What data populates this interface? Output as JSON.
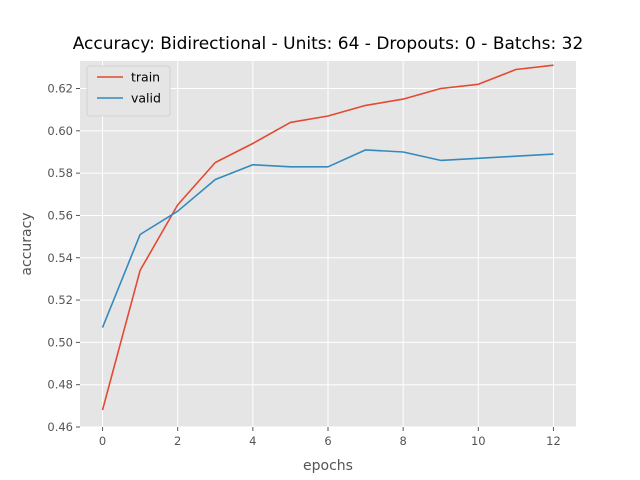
{
  "chart_data": {
    "type": "line",
    "title": "Accuracy: Bidirectional - Units: 64 - Dropouts: 0 - Batchs: 32",
    "xlabel": "epochs",
    "ylabel": "accuracy",
    "xlim": [
      -0.6,
      12.6
    ],
    "ylim": [
      0.46,
      0.633
    ],
    "x_ticks": [
      0,
      2,
      4,
      6,
      8,
      10,
      12
    ],
    "y_ticks": [
      0.46,
      0.48,
      0.5,
      0.52,
      0.54,
      0.56,
      0.58,
      0.6,
      0.62
    ],
    "y_tick_labels": [
      "0.46",
      "0.48",
      "0.50",
      "0.52",
      "0.54",
      "0.56",
      "0.58",
      "0.60",
      "0.62"
    ],
    "grid": true,
    "legend": "top-left",
    "x": [
      0,
      1,
      2,
      3,
      4,
      5,
      6,
      7,
      8,
      9,
      10,
      11,
      12
    ],
    "series": [
      {
        "name": "train",
        "color": "#E24A33",
        "values": [
          0.468,
          0.534,
          0.565,
          0.585,
          0.594,
          0.604,
          0.607,
          0.612,
          0.615,
          0.62,
          0.622,
          0.629,
          0.631
        ]
      },
      {
        "name": "valid",
        "color": "#348ABD",
        "values": [
          0.507,
          0.551,
          0.562,
          0.577,
          0.584,
          0.583,
          0.583,
          0.591,
          0.59,
          0.586,
          0.587,
          0.588,
          0.589
        ]
      }
    ]
  }
}
